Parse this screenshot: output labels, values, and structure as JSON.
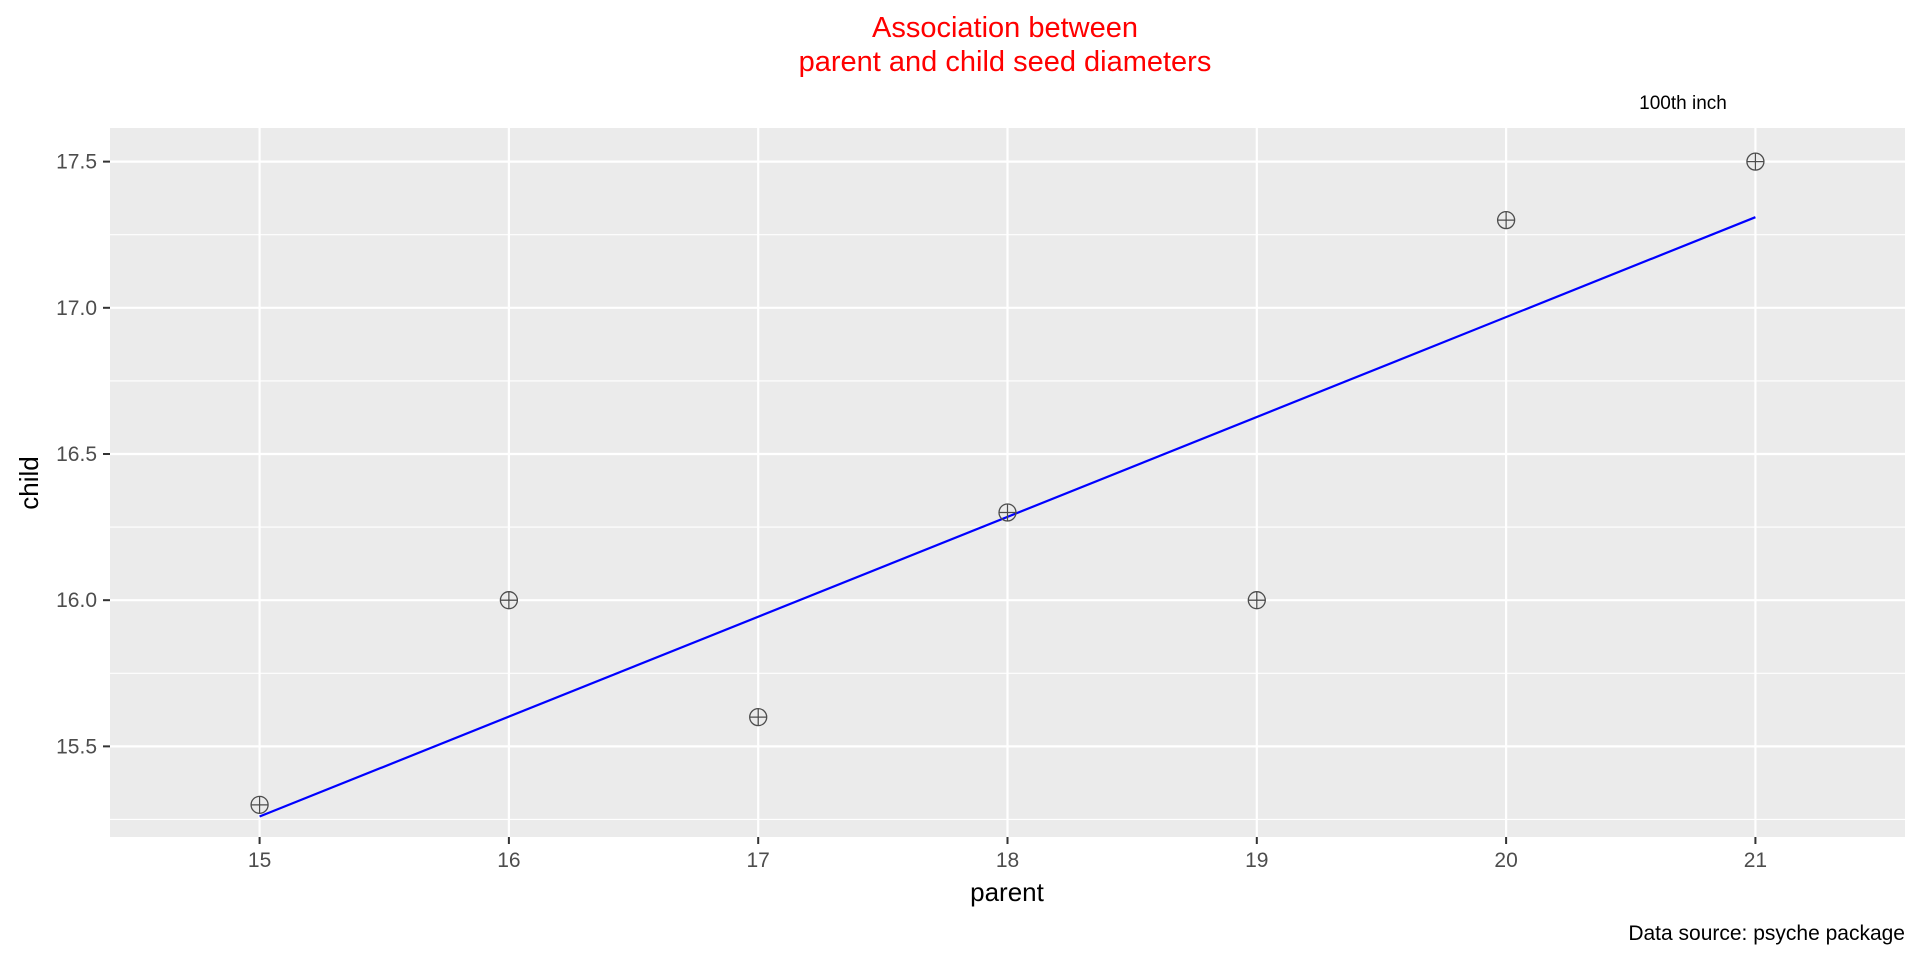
{
  "chart_data": {
    "type": "scatter",
    "title_lines": [
      "Association between",
      "parent and child seed diameters"
    ],
    "xlabel": "parent",
    "ylabel": "child",
    "annotation": "100th inch",
    "caption": "Data source: psyche package",
    "xlim": [
      14.4,
      21.6
    ],
    "ylim": [
      15.19,
      17.615
    ],
    "x_ticks": [
      15,
      16,
      17,
      18,
      19,
      20,
      21
    ],
    "x_tick_labels": [
      "15",
      "16",
      "17",
      "18",
      "19",
      "20",
      "21"
    ],
    "y_ticks": [
      15.5,
      16.0,
      16.5,
      17.0,
      17.5
    ],
    "y_tick_labels": [
      "15.5",
      "16.0",
      "16.5",
      "17.0",
      "17.5"
    ],
    "y_minor_ticks": [
      15.25,
      15.75,
      16.25,
      16.75,
      17.25
    ],
    "x_minor_ticks": [],
    "grid": true,
    "points": [
      {
        "x": 15,
        "y": 15.3
      },
      {
        "x": 16,
        "y": 16.0
      },
      {
        "x": 17,
        "y": 15.6
      },
      {
        "x": 18,
        "y": 16.3
      },
      {
        "x": 19,
        "y": 16.0
      },
      {
        "x": 20,
        "y": 17.3
      },
      {
        "x": 21,
        "y": 17.5
      }
    ],
    "fit_line": {
      "x": [
        15,
        21
      ],
      "y": [
        15.26,
        17.31
      ]
    },
    "colors": {
      "title": "#ff0000",
      "fit_line": "#0000ff",
      "panel_background": "#ebebeb",
      "grid": "#ffffff",
      "point": "#4d4d4d"
    }
  }
}
